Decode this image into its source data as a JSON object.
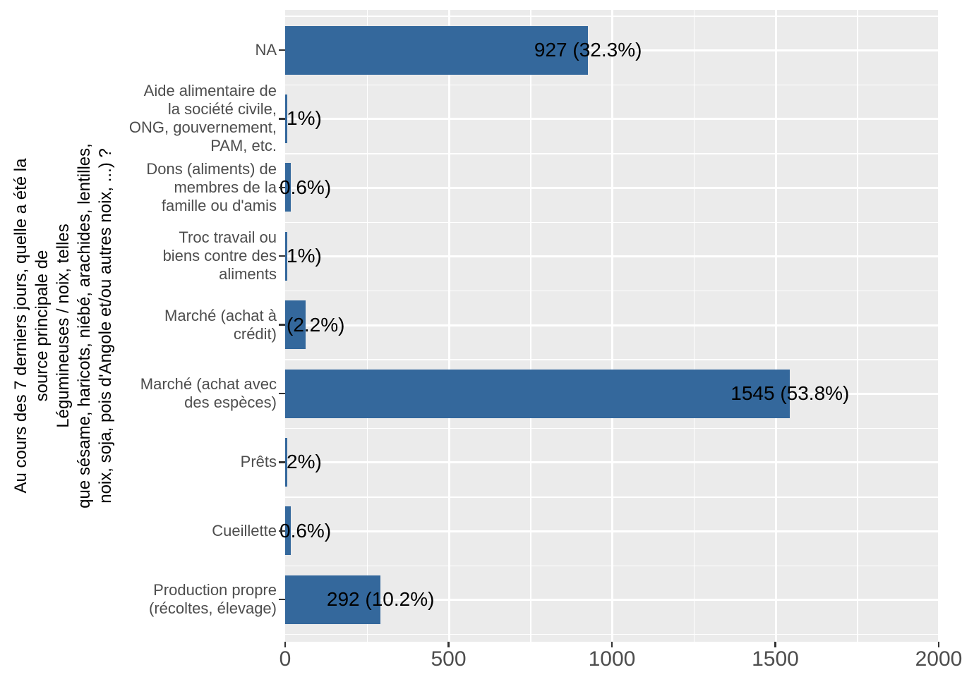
{
  "chart_data": {
    "type": "bar",
    "orientation": "horizontal",
    "title": "",
    "xlabel": "",
    "ylabel_lines": [
      "Au cours des 7 derniers jours, quelle a été la",
      "source principale de",
      "Légumineuses / noix, telles",
      "que sésame, haricots, niébé, arachides, lentilles,",
      "noix, soja, pois d'Angole et/ou autres noix, ...) ?"
    ],
    "x_axis": {
      "range": [
        0,
        2000
      ],
      "ticks": [
        0,
        500,
        1000,
        1500,
        2000
      ],
      "tick_labels": [
        "0",
        "500",
        "1000",
        "1500",
        "2000"
      ]
    },
    "grid": "on",
    "legend": "none",
    "bars": [
      {
        "category": "NA",
        "category_lines": [
          "NA"
        ],
        "value": 927,
        "label": "927 (32.3%)",
        "label_clipped": false
      },
      {
        "category": "Aide alimentaire de la société civile, ONG, gouvernement, PAM, etc.",
        "category_lines": [
          "Aide alimentaire de",
          "la société civile,",
          "ONG, gouvernement,",
          "PAM, etc."
        ],
        "value": 3,
        "label": "1%)",
        "label_clipped": true
      },
      {
        "category": "Dons (aliments) de membres de la famille ou d'amis",
        "category_lines": [
          "Dons (aliments) de",
          "membres de la",
          "famille ou d'amis"
        ],
        "value": 17,
        "label": "0.6%)",
        "label_clipped": true
      },
      {
        "category": "Troc travail ou biens contre des aliments",
        "category_lines": [
          "Troc travail ou",
          "biens contre des",
          "aliments"
        ],
        "value": 3,
        "label": "1%)",
        "label_clipped": true
      },
      {
        "category": "Marché (achat à crédit)",
        "category_lines": [
          "Marché (achat à",
          "crédit)"
        ],
        "value": 63,
        "label": "(2.2%)",
        "label_clipped": true
      },
      {
        "category": "Marché (achat avec des espèces)",
        "category_lines": [
          "Marché (achat avec",
          "des espèces)"
        ],
        "value": 1545,
        "label": "1545 (53.8%)",
        "label_clipped": false
      },
      {
        "category": "Prêts",
        "category_lines": [
          "Prêts"
        ],
        "value": 6,
        "label": "2%)",
        "label_clipped": true
      },
      {
        "category": "Cueillette",
        "category_lines": [
          "Cueillette"
        ],
        "value": 17,
        "label": "0.6%)",
        "label_clipped": true
      },
      {
        "category": "Production propre (récoltes, élevage)",
        "category_lines": [
          "Production propre",
          "(récoltes, élevage)"
        ],
        "value": 292,
        "label": "292 (10.2%)",
        "label_clipped": false
      }
    ],
    "colors": {
      "bar": "#34689C",
      "panel_background": "#EBEBEB",
      "gridline": "#FFFFFF",
      "axis_text": "#4D4D4D",
      "label_text": "#000000",
      "tick_mark": "#333333"
    }
  }
}
